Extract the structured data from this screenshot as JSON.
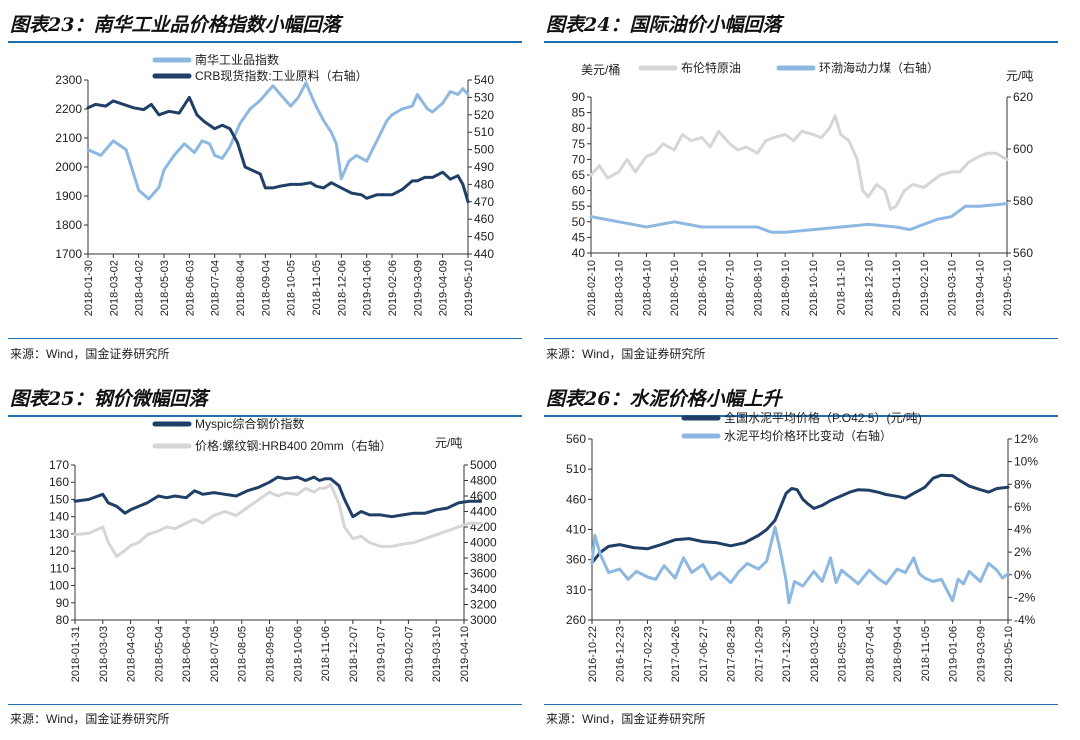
{
  "source_text": "来源：Wind，国金证券研究所",
  "chart_data": [
    {
      "id": "c23",
      "type": "line",
      "figure_label": "图表23：",
      "title": "南华工业品价格指数小幅回落",
      "x_ticks": [
        "2018-01-30",
        "2018-03-02",
        "2018-04-02",
        "2018-05-03",
        "2018-06-03",
        "2018-07-04",
        "2018-08-04",
        "2018-09-04",
        "2018-10-05",
        "2018-11-05",
        "2018-12-06",
        "2019-01-06",
        "2019-02-06",
        "2019-03-09",
        "2019-04-09",
        "2019-05-10"
      ],
      "left_axis": {
        "min": 1700,
        "max": 2300,
        "step": 100,
        "ticks": [
          "1700",
          "1800",
          "1900",
          "2000",
          "2100",
          "2200",
          "2300"
        ]
      },
      "right_axis": {
        "min": 440,
        "max": 540,
        "step": 10,
        "ticks": [
          "440",
          "450",
          "460",
          "470",
          "480",
          "490",
          "500",
          "510",
          "520",
          "530",
          "540"
        ]
      },
      "series": [
        {
          "name": "南华工业品指数",
          "axis": "left",
          "color": "#8db8e2",
          "x": [
            0,
            0.5,
            1,
            1.5,
            2,
            2.4,
            2.8,
            3,
            3.4,
            3.8,
            4.2,
            4.5,
            4.8,
            5,
            5.3,
            5.6,
            6,
            6.4,
            6.8,
            7,
            7.3,
            7.6,
            8,
            8.3,
            8.6,
            8.8,
            9,
            9.3,
            9.6,
            9.8,
            10,
            10.3,
            10.6,
            11,
            11.4,
            11.8,
            12,
            12.4,
            12.8,
            13,
            13.4,
            13.6,
            14,
            14.3,
            14.6,
            14.8,
            15
          ],
          "values": [
            2060,
            2040,
            2090,
            2060,
            1920,
            1890,
            1930,
            1990,
            2040,
            2080,
            2050,
            2090,
            2080,
            2040,
            2030,
            2070,
            2150,
            2200,
            2230,
            2250,
            2280,
            2250,
            2210,
            2240,
            2290,
            2250,
            2210,
            2160,
            2120,
            2080,
            1960,
            2020,
            2040,
            2020,
            2090,
            2160,
            2180,
            2200,
            2210,
            2250,
            2200,
            2190,
            2220,
            2260,
            2250,
            2270,
            2250
          ]
        },
        {
          "name": "CRB现货指数:工业原料（右轴）",
          "axis": "right",
          "color": "#1f3f66",
          "x": [
            0,
            0.3,
            0.7,
            1,
            1.4,
            1.8,
            2.2,
            2.5,
            2.8,
            3.2,
            3.6,
            4,
            4.3,
            4.6,
            5,
            5.3,
            5.6,
            5.9,
            6.2,
            6.5,
            6.8,
            7,
            7.3,
            7.6,
            8,
            8.4,
            8.8,
            9,
            9.3,
            9.6,
            10,
            10.4,
            10.8,
            11,
            11.4,
            11.8,
            12,
            12.4,
            12.8,
            13,
            13.3,
            13.6,
            14,
            14.3,
            14.6,
            14.8,
            15
          ],
          "values": [
            524,
            526,
            525,
            528,
            526,
            524,
            523,
            526,
            520,
            522,
            521,
            530,
            520,
            516,
            512,
            514,
            512,
            504,
            490,
            488,
            486,
            478,
            478,
            479,
            480,
            480,
            481,
            479,
            478,
            481,
            478,
            475,
            474,
            472,
            474,
            474,
            474,
            477,
            482,
            482,
            484,
            484,
            487,
            483,
            485,
            480,
            470
          ]
        }
      ],
      "legend": [
        "南华工业品指数",
        "CRB现货指数:工业原料（右轴）"
      ]
    },
    {
      "id": "c24",
      "type": "line",
      "figure_label": "图表24：",
      "title": "国际油价小幅回落",
      "left_unit": "美元/桶",
      "right_unit": "元/吨",
      "x_ticks": [
        "2018-02-10",
        "2018-03-10",
        "2018-04-10",
        "2018-05-10",
        "2018-06-10",
        "2018-07-10",
        "2018-08-10",
        "2018-09-10",
        "2018-10-10",
        "2018-11-10",
        "2018-12-10",
        "2019-01-10",
        "2019-02-10",
        "2019-03-10",
        "2019-04-10",
        "2019-05-10"
      ],
      "left_axis": {
        "min": 40,
        "max": 90,
        "step": 5,
        "ticks": [
          "40",
          "45",
          "50",
          "55",
          "60",
          "65",
          "70",
          "75",
          "80",
          "85",
          "90"
        ]
      },
      "right_axis": {
        "min": 560,
        "max": 620,
        "step": 20,
        "ticks": [
          "560",
          "580",
          "600",
          "620"
        ]
      },
      "series": [
        {
          "name": "布伦特原油",
          "axis": "left",
          "color": "#d6d6d6",
          "x": [
            0,
            0.3,
            0.6,
            1,
            1.3,
            1.6,
            2,
            2.3,
            2.6,
            3,
            3.3,
            3.6,
            4,
            4.3,
            4.6,
            5,
            5.3,
            5.6,
            6,
            6.3,
            6.6,
            7,
            7.3,
            7.6,
            8,
            8.3,
            8.6,
            8.8,
            9,
            9.3,
            9.6,
            9.8,
            10,
            10.3,
            10.6,
            10.8,
            11,
            11.3,
            11.6,
            12,
            12.3,
            12.6,
            13,
            13.3,
            13.6,
            14,
            14.3,
            14.6,
            15
          ],
          "values": [
            65,
            68,
            64,
            66,
            70,
            66,
            71,
            72,
            75,
            73,
            78,
            76,
            77,
            74,
            79,
            75,
            73,
            74,
            72,
            76,
            77,
            78,
            76,
            79,
            78,
            77,
            80,
            84,
            78,
            76,
            70,
            60,
            58,
            62,
            60,
            54,
            55,
            60,
            62,
            61,
            63,
            65,
            66,
            66,
            69,
            71,
            72,
            72,
            70
          ]
        },
        {
          "name": "环渤海动力煤（右轴）",
          "axis": "right",
          "color": "#8db8e2",
          "x": [
            0,
            1,
            2,
            3,
            4,
            5,
            6,
            6.5,
            7,
            8,
            9,
            10,
            11,
            11.5,
            12,
            12.5,
            13,
            13.5,
            14,
            15
          ],
          "values": [
            574,
            572,
            570,
            572,
            570,
            570,
            570,
            568,
            568,
            569,
            570,
            571,
            570,
            569,
            571,
            573,
            574,
            578,
            578,
            579
          ]
        }
      ],
      "legend": [
        "布伦特原油",
        "环渤海动力煤（右轴）"
      ]
    },
    {
      "id": "c25",
      "type": "line",
      "figure_label": "图表25：",
      "title": "钢价微幅回落",
      "right_unit": "元/吨",
      "x_ticks": [
        "2018-01-31",
        "2018-03-03",
        "2018-04-03",
        "2018-05-04",
        "2018-06-04",
        "2018-07-05",
        "2018-08-05",
        "2018-09-05",
        "2018-10-06",
        "2018-11-06",
        "2018-12-07",
        "2019-01-07",
        "2019-02-07",
        "2019-03-10",
        "2019-04-10"
      ],
      "left_axis": {
        "min": 80,
        "max": 170,
        "step": 10,
        "ticks": [
          "80",
          "90",
          "100",
          "110",
          "120",
          "130",
          "140",
          "150",
          "160",
          "170"
        ]
      },
      "right_axis": {
        "min": 3000,
        "max": 5000,
        "step": 200,
        "ticks": [
          "3000",
          "3200",
          "3400",
          "3600",
          "3800",
          "4000",
          "4200",
          "4400",
          "4600",
          "4800",
          "5000"
        ]
      },
      "series": [
        {
          "name": "Myspic综合钢价指数",
          "axis": "left",
          "color": "#1f3f66",
          "x": [
            0,
            0.5,
            1,
            1.2,
            1.5,
            1.8,
            2,
            2.3,
            2.6,
            3,
            3.3,
            3.6,
            4,
            4.3,
            4.6,
            5,
            5.4,
            5.8,
            6.2,
            6.6,
            7,
            7.3,
            7.6,
            8,
            8.3,
            8.6,
            8.8,
            9,
            9.2,
            9.5,
            9.7,
            10,
            10.3,
            10.6,
            11,
            11.4,
            11.8,
            12.2,
            12.6,
            13,
            13.4,
            13.8,
            14.2,
            14.6
          ],
          "values": [
            149,
            150,
            153,
            148,
            146,
            142,
            144,
            146,
            148,
            152,
            151,
            152,
            151,
            155,
            153,
            154,
            153,
            152,
            155,
            157,
            160,
            163,
            162,
            163,
            161,
            163,
            161,
            162,
            162,
            158,
            150,
            140,
            143,
            141,
            141,
            140,
            141,
            142,
            142,
            144,
            145,
            148,
            149,
            149
          ]
        },
        {
          "name": "价格:螺纹钢:HRB400 20mm（右轴）",
          "axis": "right",
          "color": "#d6d6d6",
          "x": [
            0,
            0.5,
            1,
            1.2,
            1.5,
            1.8,
            2,
            2.3,
            2.6,
            3,
            3.3,
            3.6,
            4,
            4.3,
            4.6,
            5,
            5.4,
            5.8,
            6.2,
            6.6,
            7,
            7.3,
            7.6,
            8,
            8.3,
            8.6,
            8.8,
            9,
            9.2,
            9.5,
            9.7,
            10,
            10.3,
            10.6,
            11,
            11.4,
            11.8,
            12.2,
            12.6,
            13,
            13.4,
            13.8,
            14.2,
            14.6
          ],
          "values": [
            4100,
            4120,
            4200,
            4000,
            3820,
            3900,
            3960,
            4000,
            4100,
            4150,
            4200,
            4180,
            4250,
            4300,
            4250,
            4350,
            4400,
            4350,
            4450,
            4550,
            4650,
            4600,
            4640,
            4620,
            4700,
            4650,
            4700,
            4700,
            4750,
            4500,
            4200,
            4050,
            4080,
            4000,
            3950,
            3950,
            3980,
            4000,
            4050,
            4100,
            4150,
            4200,
            4250,
            4250
          ]
        }
      ],
      "legend": [
        "Myspic综合钢价指数",
        "价格:螺纹钢:HRB400 20mm（右轴）"
      ]
    },
    {
      "id": "c26",
      "type": "line",
      "figure_label": "图表26：",
      "title": "水泥价格小幅上升",
      "x_ticks": [
        "2016-10-22",
        "2016-12-23",
        "2017-02-23",
        "2017-04-26",
        "2017-06-27",
        "2017-08-28",
        "2017-10-29",
        "2017-12-30",
        "2018-03-02",
        "2018-05-03",
        "2018-07-04",
        "2018-09-04",
        "2018-11-05",
        "2019-01-06",
        "2019-03-09",
        "2019-05-10"
      ],
      "left_axis": {
        "min": 260,
        "max": 560,
        "step": 50,
        "ticks": [
          "260",
          "310",
          "360",
          "410",
          "460",
          "510",
          "560"
        ]
      },
      "right_axis": {
        "min": -4,
        "max": 12,
        "step": 2,
        "ticks": [
          "-4%",
          "-2%",
          "0%",
          "2%",
          "4%",
          "6%",
          "8%",
          "10%",
          "12%"
        ]
      },
      "series": [
        {
          "name": "全国水泥平均价格（P.O42.5）(元/吨)",
          "axis": "left",
          "color": "#1f3f66",
          "x": [
            0,
            0.3,
            0.6,
            1,
            1.5,
            2,
            2.5,
            3,
            3.5,
            4,
            4.5,
            5,
            5.5,
            6,
            6.3,
            6.6,
            7,
            7.2,
            7.4,
            7.6,
            7.8,
            8,
            8.3,
            8.6,
            9,
            9.3,
            9.6,
            10,
            10.3,
            10.6,
            11,
            11.3,
            11.6,
            11.8,
            12,
            12.3,
            12.6,
            13,
            13.3,
            13.6,
            14,
            14.3,
            14.6,
            15
          ],
          "values": [
            355,
            372,
            382,
            385,
            380,
            378,
            385,
            393,
            395,
            390,
            388,
            383,
            388,
            400,
            410,
            425,
            470,
            478,
            476,
            460,
            452,
            445,
            450,
            458,
            466,
            472,
            476,
            475,
            472,
            468,
            465,
            462,
            470,
            475,
            480,
            495,
            500,
            499,
            490,
            482,
            476,
            472,
            478,
            480
          ]
        },
        {
          "name": "水泥平均价格环比变动（右轴）",
          "axis": "right",
          "color": "#8db8e2",
          "x": [
            0,
            0.1,
            0.3,
            0.6,
            1,
            1.3,
            1.6,
            2,
            2.3,
            2.6,
            3,
            3.3,
            3.6,
            4,
            4.3,
            4.6,
            5,
            5.3,
            5.6,
            6,
            6.3,
            6.6,
            6.8,
            7,
            7.1,
            7.3,
            7.6,
            8,
            8.3,
            8.6,
            8.8,
            9,
            9.3,
            9.6,
            10,
            10.3,
            10.6,
            11,
            11.3,
            11.6,
            11.8,
            12,
            12.3,
            12.6,
            13,
            13.2,
            13.4,
            13.6,
            14,
            14.3,
            14.6,
            14.8,
            15
          ],
          "values": [
            1,
            3.5,
            1.8,
            0.2,
            0.5,
            -0.4,
            0.3,
            -0.2,
            -0.4,
            0.8,
            -0.3,
            1.5,
            0.2,
            0.9,
            -0.4,
            0.2,
            -0.7,
            0.3,
            1,
            0.5,
            1.2,
            4.2,
            2,
            -0.5,
            -2.5,
            -0.6,
            -1,
            0.3,
            -0.6,
            1.5,
            -0.7,
            0.4,
            -0.2,
            -0.8,
            0.4,
            -0.3,
            -0.8,
            0.5,
            0.2,
            1.5,
            0.1,
            -0.3,
            -0.6,
            -0.4,
            -2.3,
            -0.4,
            -0.8,
            0.3,
            -0.6,
            1,
            0.4,
            -0.3,
            0.1
          ]
        }
      ],
      "legend": [
        "全国水泥平均价格（P.O42.5）(元/吨)",
        "水泥平均价格环比变动（右轴）"
      ]
    }
  ]
}
